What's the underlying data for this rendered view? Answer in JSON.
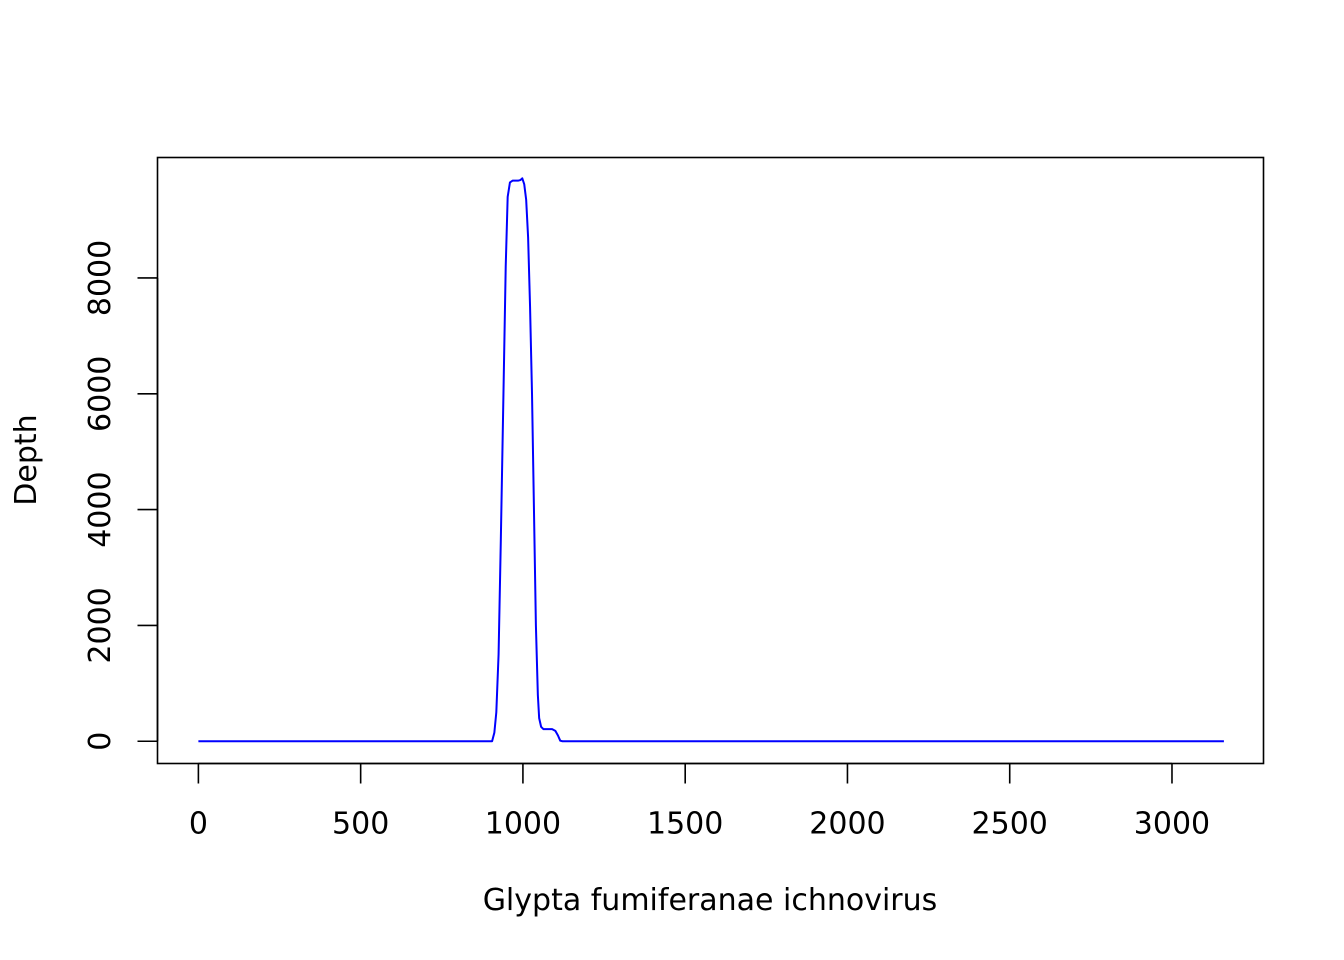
{
  "chart_data": {
    "type": "line",
    "title": "",
    "xlabel": "Glypta fumiferanae ichnovirus",
    "ylabel": "Depth",
    "xlim": [
      -126,
      3282
    ],
    "ylim": [
      -384,
      10080
    ],
    "x_ticks": [
      0,
      500,
      1000,
      1500,
      2000,
      2500,
      3000
    ],
    "x_tick_labels": [
      "0",
      "500",
      "1000",
      "1500",
      "2000",
      "2500",
      "3000"
    ],
    "y_ticks": [
      0,
      2000,
      4000,
      6000,
      8000
    ],
    "y_tick_labels": [
      "0",
      "2000",
      "4000",
      "6000",
      "8000"
    ],
    "grid": false,
    "legend": "none",
    "series": [
      {
        "color": "#0000ff",
        "points": [
          [
            0,
            0
          ],
          [
            905,
            0
          ],
          [
            912,
            150
          ],
          [
            918,
            500
          ],
          [
            925,
            1500
          ],
          [
            932,
            3500
          ],
          [
            940,
            6000
          ],
          [
            947,
            8200
          ],
          [
            953,
            9400
          ],
          [
            960,
            9650
          ],
          [
            968,
            9680
          ],
          [
            985,
            9680
          ],
          [
            992,
            9690
          ],
          [
            998,
            9720
          ],
          [
            1004,
            9620
          ],
          [
            1010,
            9350
          ],
          [
            1016,
            8700
          ],
          [
            1022,
            7500
          ],
          [
            1028,
            6000
          ],
          [
            1034,
            4000
          ],
          [
            1040,
            2000
          ],
          [
            1046,
            800
          ],
          [
            1050,
            400
          ],
          [
            1056,
            250
          ],
          [
            1063,
            210
          ],
          [
            1090,
            210
          ],
          [
            1100,
            180
          ],
          [
            1108,
            100
          ],
          [
            1115,
            10
          ],
          [
            1122,
            0
          ],
          [
            3160,
            0
          ]
        ]
      }
    ]
  }
}
